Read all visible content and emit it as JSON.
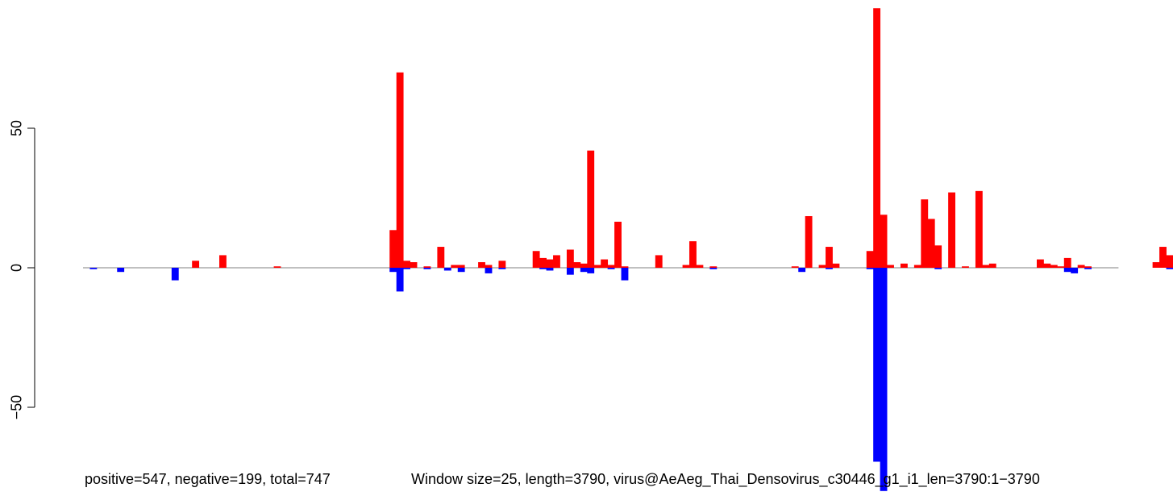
{
  "chart_data": {
    "type": "bar",
    "xlabel": "",
    "ylabel": "",
    "ylim": [
      -80,
      93
    ],
    "y_ticks": [
      {
        "value": -50,
        "label": "−50"
      },
      {
        "value": 0,
        "label": "0"
      },
      {
        "value": 50,
        "label": "50"
      }
    ],
    "colors": {
      "positive": "#ff0000",
      "negative": "#0000ff",
      "axis": "#000000",
      "baseline": "#808080"
    },
    "bin_width": 25,
    "x_range": [
      1,
      3790
    ],
    "series": [
      {
        "sign": "positive",
        "bins": [
          [
            16,
            2.5
          ],
          [
            20,
            4.5
          ],
          [
            28,
            0.5
          ],
          [
            45,
            13.5
          ],
          [
            46,
            70
          ],
          [
            47,
            2.5
          ],
          [
            48,
            2
          ],
          [
            50,
            0.5
          ],
          [
            52,
            7.5
          ],
          [
            54,
            1
          ],
          [
            55,
            1
          ],
          [
            58,
            2
          ],
          [
            59,
            1
          ],
          [
            61,
            2.5
          ],
          [
            66,
            6
          ],
          [
            67,
            3.5
          ],
          [
            68,
            3
          ],
          [
            69,
            4.5
          ],
          [
            71,
            6.5
          ],
          [
            72,
            2
          ],
          [
            73,
            1.5
          ],
          [
            74,
            42
          ],
          [
            75,
            1
          ],
          [
            76,
            3
          ],
          [
            77,
            1
          ],
          [
            78,
            16.5
          ],
          [
            79,
            0.5
          ],
          [
            84,
            4.5
          ],
          [
            88,
            1
          ],
          [
            89,
            9.5
          ],
          [
            90,
            1
          ],
          [
            92,
            0.5
          ],
          [
            104,
            0.5
          ],
          [
            106,
            18.5
          ],
          [
            108,
            1
          ],
          [
            109,
            7.5
          ],
          [
            110,
            1.5
          ],
          [
            115,
            6
          ],
          [
            116,
            93
          ],
          [
            117,
            19
          ],
          [
            118,
            1
          ],
          [
            120,
            1.5
          ],
          [
            122,
            1
          ],
          [
            123,
            24.5
          ],
          [
            124,
            17.5
          ],
          [
            125,
            8
          ],
          [
            127,
            27
          ],
          [
            129,
            0.5
          ],
          [
            131,
            27.5
          ],
          [
            132,
            1
          ],
          [
            133,
            1.5
          ],
          [
            140,
            3
          ],
          [
            141,
            1.5
          ],
          [
            142,
            1
          ],
          [
            143,
            0.5
          ],
          [
            144,
            3.5
          ],
          [
            146,
            1
          ],
          [
            147,
            0.5
          ],
          [
            157,
            2
          ],
          [
            158,
            7.5
          ],
          [
            159,
            4.5
          ],
          [
            162,
            8
          ],
          [
            165,
            7
          ],
          [
            166,
            3
          ],
          [
            167,
            1
          ],
          [
            168,
            2
          ],
          [
            174,
            1
          ],
          [
            175,
            3
          ],
          [
            176,
            11
          ],
          [
            177,
            11
          ]
        ]
      },
      {
        "sign": "negative",
        "bins": [
          [
            1,
            0.5
          ],
          [
            5,
            1.5
          ],
          [
            13,
            4.5
          ],
          [
            45,
            1.5
          ],
          [
            46,
            8.5
          ],
          [
            47,
            0.5
          ],
          [
            50,
            0.5
          ],
          [
            53,
            1
          ],
          [
            55,
            1.5
          ],
          [
            59,
            2
          ],
          [
            61,
            0.5
          ],
          [
            67,
            0.5
          ],
          [
            68,
            1
          ],
          [
            71,
            2.5
          ],
          [
            73,
            1.5
          ],
          [
            74,
            2
          ],
          [
            77,
            0.5
          ],
          [
            79,
            4.5
          ],
          [
            92,
            0.5
          ],
          [
            105,
            1.5
          ],
          [
            109,
            0.5
          ],
          [
            115,
            0.5
          ],
          [
            116,
            69.5
          ],
          [
            117,
            80
          ],
          [
            125,
            0.5
          ],
          [
            144,
            1.5
          ],
          [
            145,
            2
          ],
          [
            147,
            0.5
          ],
          [
            159,
            0.5
          ],
          [
            162,
            0.5
          ],
          [
            166,
            0.5
          ],
          [
            175,
            2.5
          ]
        ]
      }
    ],
    "annotations": [
      "positive=547, negative=199, total=747",
      "Window size=25, length=3790, virus@AeAeg_Thai_Densovirus_c30446_g1_i1_len=3790:1−3790"
    ]
  }
}
